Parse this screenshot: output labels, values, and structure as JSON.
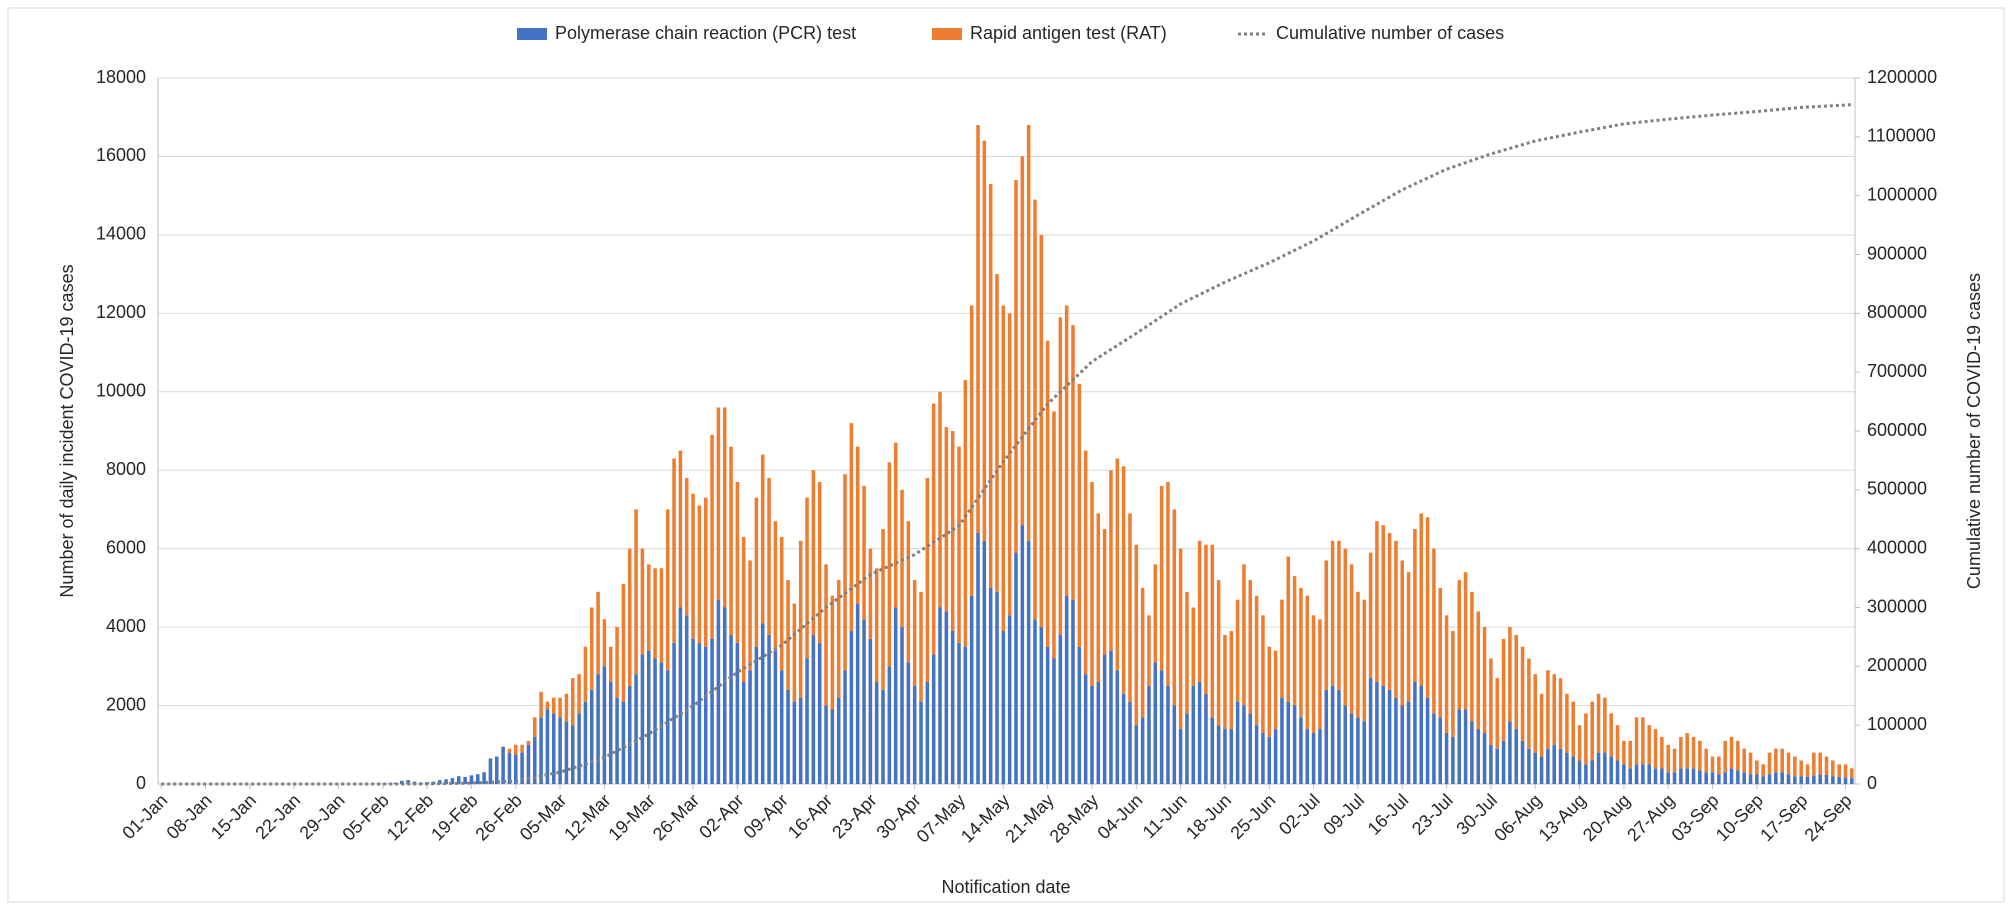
{
  "chart_data": {
    "type": "bar",
    "stacked": true,
    "x_label": "Notification date",
    "y_label": "Number of daily incident COVID-19 cases",
    "y2_label": "Cumulative number of COVID-19 cases",
    "ylim": [
      0,
      18000
    ],
    "yticks": [
      0,
      2000,
      4000,
      6000,
      8000,
      10000,
      12000,
      14000,
      16000,
      18000
    ],
    "y2lim": [
      0,
      1200000
    ],
    "y2ticks": [
      0,
      100000,
      200000,
      300000,
      400000,
      500000,
      600000,
      700000,
      800000,
      900000,
      1000000,
      1100000,
      1200000
    ],
    "grid": true,
    "legend": "top",
    "categories": [
      "01-Jan",
      null,
      null,
      null,
      null,
      null,
      null,
      "08-Jan",
      null,
      null,
      null,
      null,
      null,
      null,
      "15-Jan",
      null,
      null,
      null,
      null,
      null,
      null,
      "22-Jan",
      null,
      null,
      null,
      null,
      null,
      null,
      "29-Jan",
      null,
      null,
      null,
      null,
      null,
      null,
      "05-Feb",
      null,
      null,
      null,
      null,
      null,
      null,
      "12-Feb",
      null,
      null,
      null,
      null,
      null,
      null,
      "19-Feb",
      null,
      null,
      null,
      null,
      null,
      null,
      "26-Feb",
      null,
      null,
      null,
      null,
      null,
      null,
      "05-Mar",
      null,
      null,
      null,
      null,
      null,
      null,
      "12-Mar",
      null,
      null,
      null,
      null,
      null,
      null,
      "19-Mar",
      null,
      null,
      null,
      null,
      null,
      null,
      "26-Mar",
      null,
      null,
      null,
      null,
      null,
      null,
      "02-Apr",
      null,
      null,
      null,
      null,
      null,
      null,
      "09-Apr",
      null,
      null,
      null,
      null,
      null,
      null,
      "16-Apr",
      null,
      null,
      null,
      null,
      null,
      null,
      "23-Apr",
      null,
      null,
      null,
      null,
      null,
      null,
      "30-Apr",
      null,
      null,
      null,
      null,
      null,
      null,
      "07-May",
      null,
      null,
      null,
      null,
      null,
      null,
      "14-May",
      null,
      null,
      null,
      null,
      null,
      null,
      "21-May",
      null,
      null,
      null,
      null,
      null,
      null,
      "28-May",
      null,
      null,
      null,
      null,
      null,
      null,
      "04-Jun",
      null,
      null,
      null,
      null,
      null,
      null,
      "11-Jun",
      null,
      null,
      null,
      null,
      null,
      null,
      "18-Jun",
      null,
      null,
      null,
      null,
      null,
      null,
      "25-Jun",
      null,
      null,
      null,
      null,
      null,
      null,
      "02-Jul",
      null,
      null,
      null,
      null,
      null,
      null,
      "09-Jul",
      null,
      null,
      null,
      null,
      null,
      null,
      "16-Jul",
      null,
      null,
      null,
      null,
      null,
      null,
      "23-Jul",
      null,
      null,
      null,
      null,
      null,
      null,
      "30-Jul",
      null,
      null,
      null,
      null,
      null,
      null,
      "06-Aug",
      null,
      null,
      null,
      null,
      null,
      null,
      "13-Aug",
      null,
      null,
      null,
      null,
      null,
      null,
      "20-Aug",
      null,
      null,
      null,
      null,
      null,
      null,
      "27-Aug",
      null,
      null,
      null,
      null,
      null,
      null,
      "03-Sep",
      null,
      null,
      null,
      null,
      null,
      null,
      "10-Sep",
      null,
      null,
      null,
      null,
      null,
      null,
      "17-Sep",
      null,
      null,
      null,
      null,
      null,
      null,
      "24-Sep",
      null
    ],
    "series": [
      {
        "name": "Polymerase chain reaction (PCR) test",
        "color": "#4472c4",
        "values": [
          0,
          0,
          0,
          0,
          0,
          0,
          0,
          0,
          0,
          0,
          0,
          0,
          0,
          0,
          0,
          0,
          0,
          0,
          0,
          0,
          0,
          0,
          0,
          0,
          0,
          0,
          0,
          0,
          0,
          0,
          0,
          0,
          0,
          0,
          5,
          5,
          10,
          30,
          80,
          100,
          60,
          40,
          50,
          60,
          100,
          120,
          150,
          200,
          180,
          220,
          250,
          300,
          650,
          700,
          950,
          800,
          750,
          800,
          1000,
          1200,
          1700,
          1900,
          1800,
          1700,
          1600,
          1500,
          1800,
          2100,
          2400,
          2800,
          3000,
          2600,
          2200,
          2100,
          2500,
          2800,
          3300,
          3400,
          3200,
          3100,
          2900,
          3600,
          4500,
          4300,
          3700,
          3600,
          3500,
          3700,
          4700,
          4500,
          3800,
          3600,
          2600,
          2900,
          3500,
          4100,
          3800,
          3400,
          2900,
          2400,
          2100,
          2200,
          3200,
          3800,
          3600,
          2000,
          1900,
          2200,
          2900,
          3900,
          4600,
          4200,
          3700,
          2600,
          2400,
          3000,
          4500,
          4000,
          3100,
          2500,
          2100,
          2600,
          3300,
          4500,
          4400,
          3900,
          3600,
          3500,
          4800,
          6400,
          6200,
          5000,
          4900,
          3900,
          4300,
          5900,
          6600,
          6200,
          4200,
          4000,
          3500,
          3200,
          3800,
          4800,
          4700,
          3500,
          2800,
          2500,
          2600,
          3300,
          3400,
          2900,
          2300,
          2100,
          1500,
          1700,
          2500,
          3100,
          2900,
          2500,
          2000,
          1400,
          1800,
          2500,
          2600,
          2300,
          1700,
          1500,
          1400,
          1400,
          2100,
          2000,
          1800,
          1500,
          1300,
          1200,
          1400,
          2200,
          2100,
          2000,
          1700,
          1400,
          1300,
          1400,
          2400,
          2500,
          2400,
          2000,
          1800,
          1700,
          1600,
          2700,
          2600,
          2500,
          2400,
          2200,
          2000,
          2100,
          2600,
          2500,
          2200,
          1800,
          1700,
          1300,
          1200,
          1900,
          1900,
          1600,
          1400,
          1300,
          1000,
          900,
          1100,
          1600,
          1400,
          1100,
          900,
          800,
          700,
          900,
          1000,
          900,
          800,
          700,
          600,
          500,
          600,
          800,
          800,
          700,
          600,
          500,
          400,
          500,
          500,
          500,
          400,
          400,
          300,
          300,
          400,
          400,
          400,
          350,
          300,
          300,
          250,
          300,
          400,
          350,
          300,
          250,
          250,
          200,
          250,
          300,
          300,
          250,
          200,
          200,
          180,
          220,
          250,
          230,
          200,
          180,
          170,
          150
        ]
      },
      {
        "name": "Rapid antigen test (RAT)",
        "color": "#ed7d31",
        "values": [
          0,
          0,
          0,
          0,
          0,
          0,
          0,
          0,
          0,
          0,
          0,
          0,
          0,
          0,
          0,
          0,
          0,
          0,
          0,
          0,
          0,
          0,
          0,
          0,
          0,
          0,
          0,
          0,
          0,
          0,
          0,
          0,
          0,
          0,
          0,
          0,
          0,
          0,
          0,
          0,
          0,
          0,
          0,
          0,
          0,
          0,
          0,
          0,
          0,
          0,
          0,
          0,
          0,
          0,
          0,
          100,
          250,
          200,
          100,
          500,
          650,
          200,
          400,
          500,
          700,
          1200,
          1000,
          1400,
          2100,
          2100,
          1200,
          900,
          1800,
          3000,
          3500,
          4200,
          2700,
          2200,
          2300,
          2400,
          4100,
          4700,
          4000,
          3500,
          3700,
          3500,
          3800,
          5200,
          4900,
          5100,
          4800,
          4100,
          3700,
          2800,
          3800,
          4300,
          4000,
          3300,
          3400,
          2800,
          2500,
          4000,
          4100,
          4200,
          4100,
          3600,
          2900,
          3000,
          5000,
          5300,
          4000,
          3400,
          2300,
          2900,
          4100,
          5200,
          4200,
          3500,
          3600,
          2700,
          2800,
          5200,
          6400,
          5500,
          4700,
          5100,
          5000,
          6800,
          7400,
          10400,
          10200,
          10300,
          8100,
          8300,
          7700,
          9500,
          9400,
          10600,
          10700,
          10000,
          7800,
          6300,
          8100,
          7400,
          7000,
          6700,
          5700,
          5200,
          4300,
          3200,
          4600,
          5400,
          5800,
          4800,
          4600,
          3300,
          1800,
          2500,
          4700,
          5200,
          5000,
          4600,
          3100,
          2000,
          3600,
          3800,
          4400,
          3700,
          2400,
          2500,
          2600,
          3600,
          3400,
          3300,
          3000,
          2300,
          2000,
          2500,
          3700,
          3300,
          3300,
          3400,
          3000,
          2800,
          3300,
          3700,
          3800,
          4000,
          3800,
          3200,
          3100,
          3200,
          4100,
          4100,
          4000,
          4000,
          3700,
          3300,
          3900,
          4400,
          4600,
          4200,
          3300,
          3000,
          2700,
          3300,
          3500,
          3300,
          3000,
          2700,
          2200,
          1800,
          2600,
          2400,
          2400,
          2400,
          2300,
          2000,
          1600,
          2000,
          1800,
          1800,
          1500,
          1400,
          900,
          1300,
          1500,
          1500,
          1400,
          1100,
          900,
          600,
          700,
          1200,
          1200,
          1000,
          1000,
          800,
          700,
          600,
          800,
          900,
          800,
          750,
          600,
          400,
          450,
          800,
          800,
          750,
          600,
          550,
          350,
          300,
          550,
          600,
          600,
          550,
          500,
          400,
          320,
          580,
          550,
          470,
          400,
          320,
          330,
          250
        ]
      },
      {
        "name": "Cumulative number of cases",
        "color": "#7f7f7f",
        "type": "line",
        "axis": "y2",
        "dash": "dotted",
        "values": [
          0,
          0,
          0,
          0,
          0,
          0,
          0,
          0,
          0,
          0,
          0,
          0,
          0,
          0,
          0,
          0,
          0,
          0,
          0,
          0,
          0,
          0,
          0,
          0,
          0,
          0,
          0,
          0,
          0,
          0,
          0,
          0,
          0,
          0,
          0,
          0,
          0,
          0,
          50,
          100,
          200,
          250,
          300,
          470,
          640,
          810,
          990,
          1160,
          1330,
          1500,
          2000,
          2500,
          3000,
          3500,
          4000,
          4500,
          5000,
          7000,
          9000,
          11000,
          13500,
          16000,
          18000,
          20000,
          23500,
          27000,
          30500,
          34000,
          38000,
          41500,
          45000,
          50700,
          56400,
          62100,
          67900,
          73600,
          79300,
          85000,
          91900,
          98700,
          105600,
          112400,
          119300,
          126100,
          133000,
          141100,
          149300,
          157400,
          165600,
          173700,
          181900,
          190000,
          196600,
          203100,
          209700,
          216300,
          222900,
          229400,
          236000,
          245100,
          254300,
          263400,
          272600,
          281700,
          290900,
          300000,
          308000,
          316000,
          324000,
          332000,
          340000,
          348000,
          356000,
          360900,
          365700,
          370600,
          375400,
          380300,
          385100,
          390000,
          397000,
          404000,
          411000,
          418000,
          425000,
          432000,
          439000,
          454600,
          470100,
          485700,
          501300,
          516900,
          532400,
          548000,
          562000,
          576000,
          590000,
          604000,
          618000,
          632000,
          646000,
          656300,
          666600,
          676900,
          687100,
          697400,
          707700,
          718000,
          724900,
          731700,
          738600,
          745400,
          752300,
          759100,
          766000,
          773100,
          780300,
          787400,
          794600,
          801700,
          808900,
          816000,
          821300,
          826600,
          831900,
          837100,
          842400,
          847700,
          853000,
          857700,
          862400,
          867100,
          871900,
          876600,
          881300,
          886000,
          891300,
          896600,
          901900,
          907100,
          912400,
          917700,
          923000,
          929300,
          935600,
          941900,
          948100,
          954400,
          960700,
          967000,
          973100,
          979300,
          985400,
          991600,
          997700,
          1003900,
          1010000,
          1015000,
          1020000,
          1025000,
          1030000,
          1035000,
          1040000,
          1045000,
          1048700,
          1052400,
          1056100,
          1059900,
          1063600,
          1067300,
          1071000,
          1074100,
          1077300,
          1080400,
          1083600,
          1086700,
          1089900,
          1093000,
          1095100,
          1097300,
          1099400,
          1101600,
          1103700,
          1105900,
          1108000,
          1110000,
          1112000,
          1114000,
          1116000,
          1118000,
          1120000,
          1122000,
          1123100,
          1124300,
          1125400,
          1126600,
          1127700,
          1128900,
          1130000,
          1131000,
          1132000,
          1133000,
          1134000,
          1135000,
          1136000,
          1137000,
          1137900,
          1138700,
          1139600,
          1140400,
          1141300,
          1142100,
          1143000,
          1144000,
          1145000,
          1146000,
          1147000,
          1148000,
          1149000,
          1150000,
          1150600,
          1151100,
          1151700,
          1152300,
          1152900,
          1153400,
          1154000,
          1155000
        ]
      }
    ]
  }
}
